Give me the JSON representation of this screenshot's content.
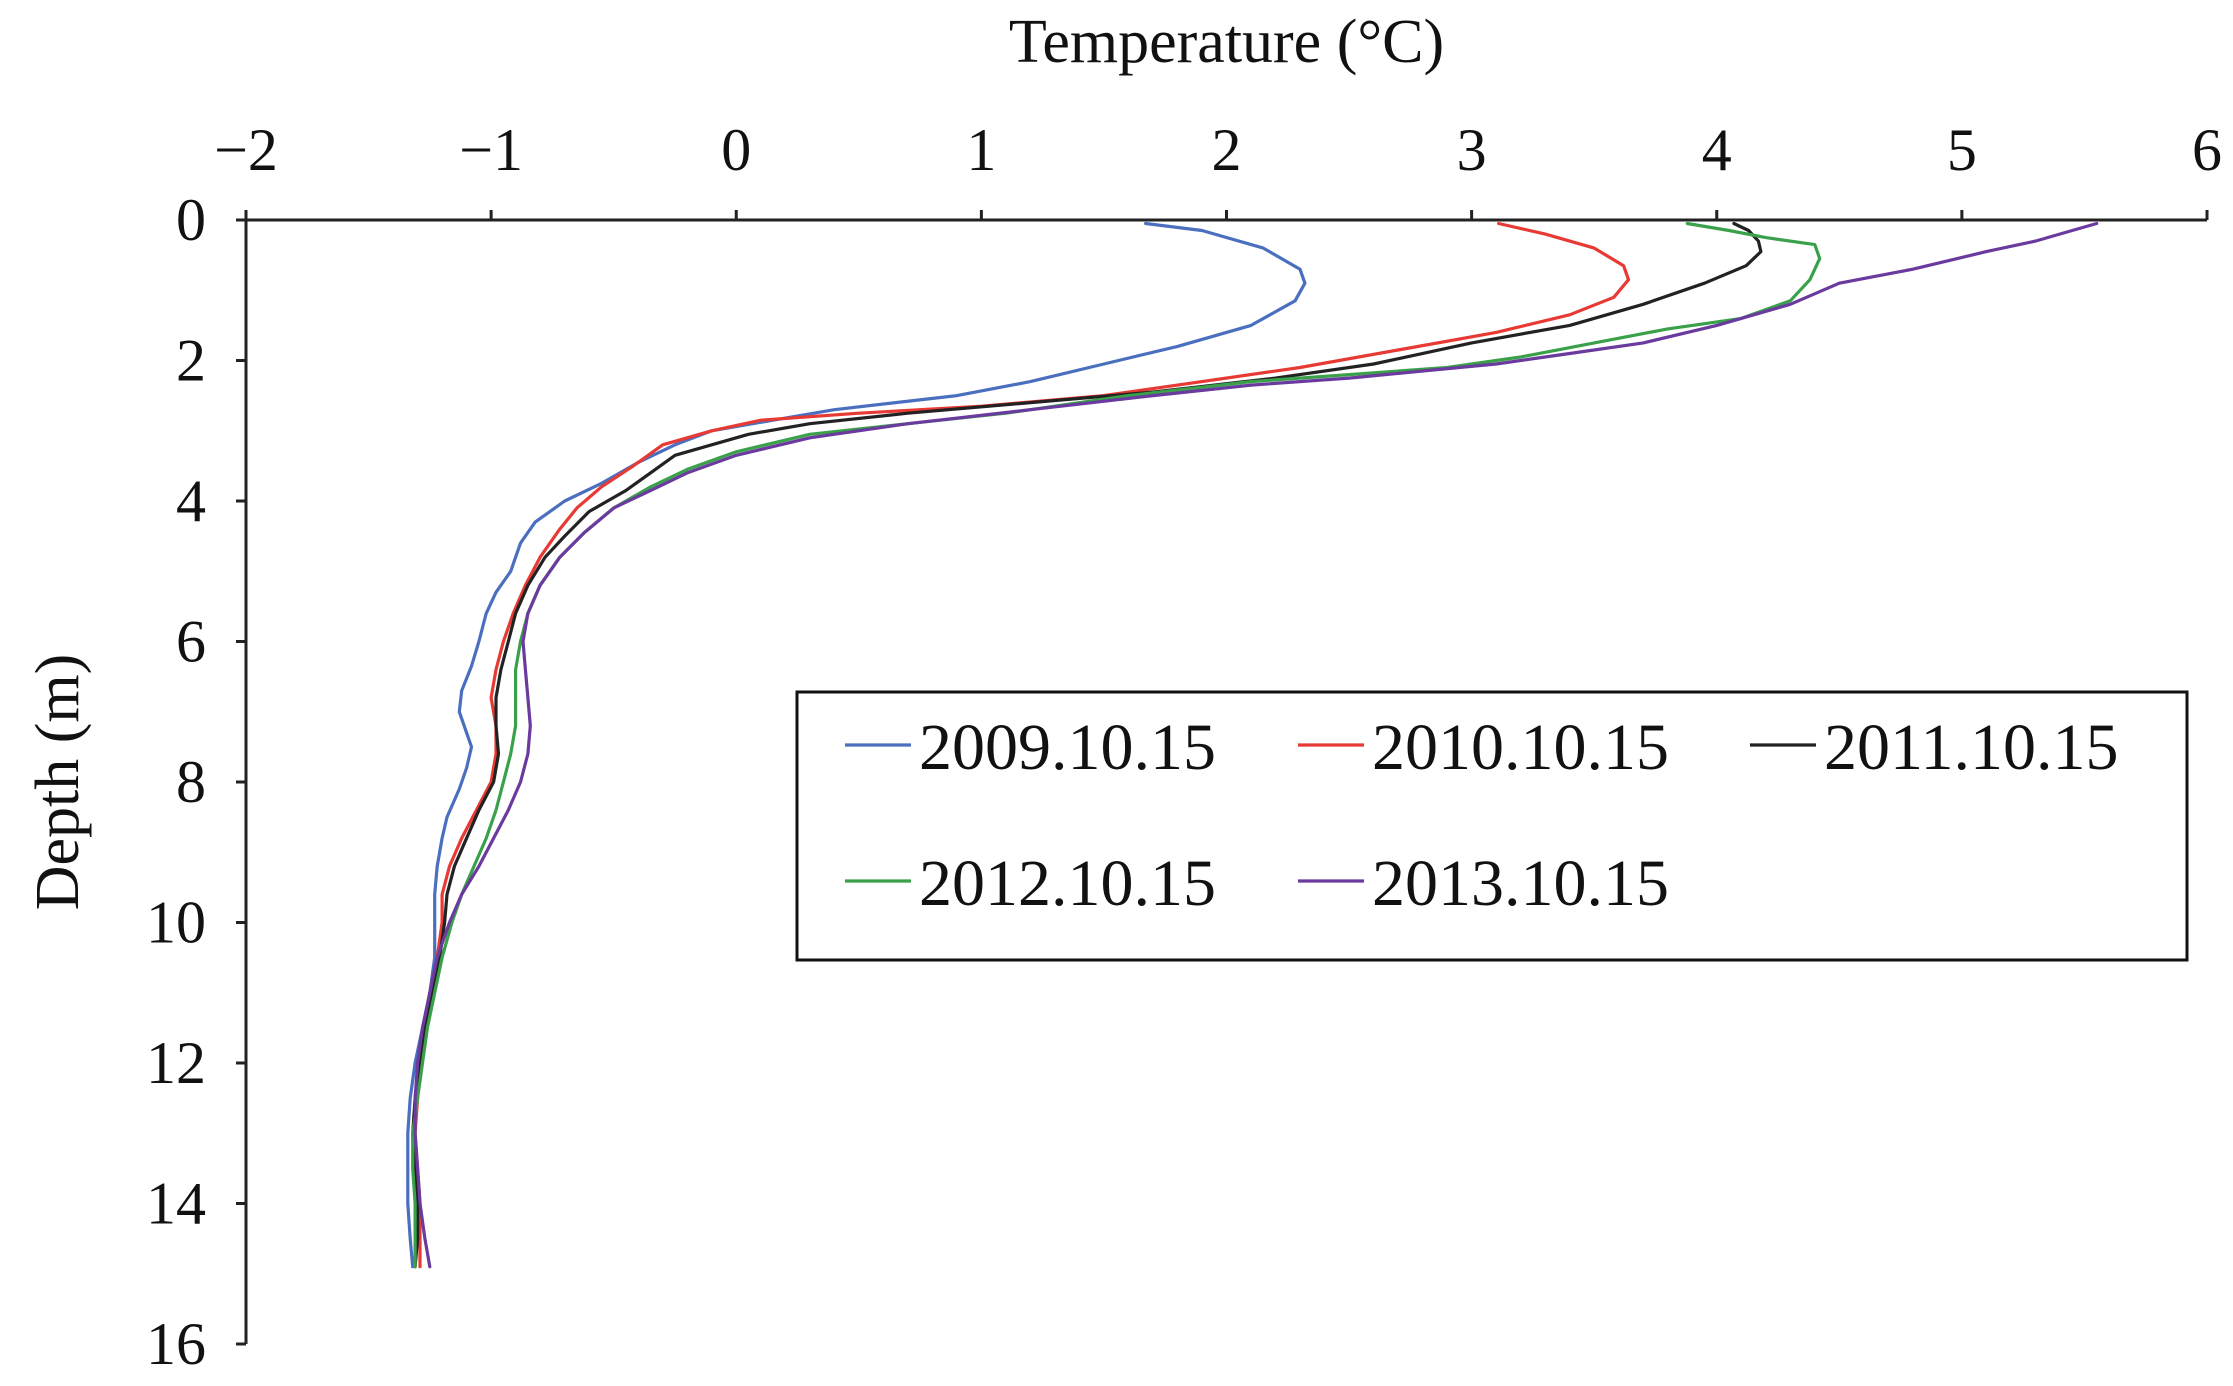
{
  "chart_data": {
    "type": "line",
    "title": "",
    "xlabel": "Temperature (°C)",
    "ylabel": "Depth (m)",
    "x_axis_position": "top",
    "y_axis_inverted": true,
    "xlim": [
      -2,
      6
    ],
    "ylim": [
      0,
      16
    ],
    "x_ticks": [
      "−2",
      "−1",
      "0",
      "1",
      "2",
      "3",
      "4",
      "5",
      "6"
    ],
    "y_ticks": [
      "0",
      "2",
      "4",
      "6",
      "8",
      "10",
      "12",
      "14",
      "16"
    ],
    "grid": false,
    "legend_position": "right-center",
    "series": [
      {
        "name": "2009.10.15",
        "color": "#4a6fbf",
        "points": [
          [
            1.67,
            0.05
          ],
          [
            1.9,
            0.15
          ],
          [
            2.15,
            0.4
          ],
          [
            2.3,
            0.7
          ],
          [
            2.32,
            0.9
          ],
          [
            2.28,
            1.15
          ],
          [
            2.1,
            1.5
          ],
          [
            1.8,
            1.8
          ],
          [
            1.5,
            2.05
          ],
          [
            1.2,
            2.3
          ],
          [
            0.9,
            2.5
          ],
          [
            0.65,
            2.6
          ],
          [
            0.4,
            2.7
          ],
          [
            0.15,
            2.85
          ],
          [
            -0.1,
            3.0
          ],
          [
            -0.25,
            3.2
          ],
          [
            -0.4,
            3.45
          ],
          [
            -0.55,
            3.75
          ],
          [
            -0.7,
            4.0
          ],
          [
            -0.82,
            4.3
          ],
          [
            -0.88,
            4.6
          ],
          [
            -0.92,
            5.0
          ],
          [
            -0.98,
            5.3
          ],
          [
            -1.02,
            5.6
          ],
          [
            -1.05,
            6.0
          ],
          [
            -1.08,
            6.35
          ],
          [
            -1.12,
            6.7
          ],
          [
            -1.13,
            7.0
          ],
          [
            -1.1,
            7.3
          ],
          [
            -1.08,
            7.5
          ],
          [
            -1.1,
            7.8
          ],
          [
            -1.13,
            8.1
          ],
          [
            -1.18,
            8.5
          ],
          [
            -1.2,
            8.8
          ],
          [
            -1.22,
            9.2
          ],
          [
            -1.23,
            9.6
          ],
          [
            -1.23,
            10.0
          ],
          [
            -1.23,
            10.5
          ],
          [
            -1.25,
            11.0
          ],
          [
            -1.28,
            11.5
          ],
          [
            -1.31,
            12.0
          ],
          [
            -1.33,
            12.5
          ],
          [
            -1.34,
            13.0
          ],
          [
            -1.34,
            13.5
          ],
          [
            -1.34,
            14.0
          ],
          [
            -1.33,
            14.5
          ],
          [
            -1.32,
            14.9
          ]
        ]
      },
      {
        "name": "2010.10.15",
        "color": "#e83a34",
        "points": [
          [
            3.11,
            0.05
          ],
          [
            3.3,
            0.2
          ],
          [
            3.5,
            0.4
          ],
          [
            3.62,
            0.65
          ],
          [
            3.64,
            0.85
          ],
          [
            3.58,
            1.1
          ],
          [
            3.4,
            1.35
          ],
          [
            3.1,
            1.6
          ],
          [
            2.7,
            1.85
          ],
          [
            2.3,
            2.1
          ],
          [
            1.9,
            2.3
          ],
          [
            1.5,
            2.5
          ],
          [
            1.0,
            2.65
          ],
          [
            0.5,
            2.75
          ],
          [
            0.1,
            2.85
          ],
          [
            -0.1,
            3.0
          ],
          [
            -0.3,
            3.2
          ],
          [
            -0.42,
            3.5
          ],
          [
            -0.55,
            3.8
          ],
          [
            -0.65,
            4.1
          ],
          [
            -0.72,
            4.4
          ],
          [
            -0.8,
            4.8
          ],
          [
            -0.86,
            5.2
          ],
          [
            -0.91,
            5.6
          ],
          [
            -0.95,
            6.0
          ],
          [
            -0.98,
            6.4
          ],
          [
            -1.0,
            6.8
          ],
          [
            -0.98,
            7.2
          ],
          [
            -0.98,
            7.6
          ],
          [
            -1.0,
            8.0
          ],
          [
            -1.06,
            8.4
          ],
          [
            -1.12,
            8.8
          ],
          [
            -1.17,
            9.2
          ],
          [
            -1.2,
            9.6
          ],
          [
            -1.2,
            10.0
          ],
          [
            -1.22,
            10.5
          ],
          [
            -1.25,
            11.0
          ],
          [
            -1.27,
            11.5
          ],
          [
            -1.29,
            12.0
          ],
          [
            -1.3,
            12.5
          ],
          [
            -1.31,
            13.0
          ],
          [
            -1.3,
            13.5
          ],
          [
            -1.29,
            14.0
          ],
          [
            -1.29,
            14.5
          ],
          [
            -1.29,
            14.9
          ]
        ]
      },
      {
        "name": "2011.10.15",
        "color": "#222222",
        "points": [
          [
            4.07,
            0.05
          ],
          [
            4.13,
            0.15
          ],
          [
            4.17,
            0.3
          ],
          [
            4.18,
            0.45
          ],
          [
            4.12,
            0.65
          ],
          [
            3.95,
            0.9
          ],
          [
            3.7,
            1.2
          ],
          [
            3.4,
            1.5
          ],
          [
            3.0,
            1.75
          ],
          [
            2.6,
            2.05
          ],
          [
            2.2,
            2.25
          ],
          [
            1.7,
            2.45
          ],
          [
            1.2,
            2.6
          ],
          [
            0.7,
            2.75
          ],
          [
            0.3,
            2.9
          ],
          [
            0.05,
            3.05
          ],
          [
            -0.1,
            3.2
          ],
          [
            -0.25,
            3.35
          ],
          [
            -0.35,
            3.6
          ],
          [
            -0.45,
            3.85
          ],
          [
            -0.6,
            4.15
          ],
          [
            -0.7,
            4.5
          ],
          [
            -0.78,
            4.8
          ],
          [
            -0.85,
            5.2
          ],
          [
            -0.9,
            5.6
          ],
          [
            -0.93,
            6.0
          ],
          [
            -0.96,
            6.4
          ],
          [
            -0.98,
            6.8
          ],
          [
            -0.98,
            7.2
          ],
          [
            -0.97,
            7.6
          ],
          [
            -0.99,
            8.0
          ],
          [
            -1.05,
            8.4
          ],
          [
            -1.1,
            8.8
          ],
          [
            -1.15,
            9.2
          ],
          [
            -1.18,
            9.6
          ],
          [
            -1.19,
            10.0
          ],
          [
            -1.21,
            10.5
          ],
          [
            -1.24,
            11.0
          ],
          [
            -1.27,
            11.5
          ],
          [
            -1.29,
            12.0
          ],
          [
            -1.31,
            12.5
          ],
          [
            -1.32,
            13.0
          ],
          [
            -1.31,
            13.5
          ],
          [
            -1.3,
            14.0
          ],
          [
            -1.3,
            14.5
          ],
          [
            -1.31,
            14.9
          ]
        ]
      },
      {
        "name": "2012.10.15",
        "color": "#3aa14a",
        "points": [
          [
            3.88,
            0.05
          ],
          [
            4.05,
            0.15
          ],
          [
            4.2,
            0.25
          ],
          [
            4.4,
            0.35
          ],
          [
            4.42,
            0.55
          ],
          [
            4.38,
            0.85
          ],
          [
            4.3,
            1.15
          ],
          [
            4.1,
            1.4
          ],
          [
            3.8,
            1.55
          ],
          [
            3.5,
            1.75
          ],
          [
            3.2,
            1.95
          ],
          [
            2.9,
            2.1
          ],
          [
            2.5,
            2.2
          ],
          [
            2.1,
            2.3
          ],
          [
            1.6,
            2.5
          ],
          [
            1.1,
            2.75
          ],
          [
            0.7,
            2.9
          ],
          [
            0.3,
            3.05
          ],
          [
            0.0,
            3.3
          ],
          [
            -0.2,
            3.55
          ],
          [
            -0.35,
            3.8
          ],
          [
            -0.5,
            4.1
          ],
          [
            -0.62,
            4.45
          ],
          [
            -0.72,
            4.8
          ],
          [
            -0.8,
            5.2
          ],
          [
            -0.85,
            5.6
          ],
          [
            -0.88,
            6.0
          ],
          [
            -0.9,
            6.4
          ],
          [
            -0.9,
            6.8
          ],
          [
            -0.9,
            7.2
          ],
          [
            -0.92,
            7.6
          ],
          [
            -0.95,
            8.0
          ],
          [
            -0.98,
            8.4
          ],
          [
            -1.02,
            8.8
          ],
          [
            -1.07,
            9.2
          ],
          [
            -1.12,
            9.6
          ],
          [
            -1.16,
            10.0
          ],
          [
            -1.2,
            10.5
          ],
          [
            -1.23,
            11.0
          ],
          [
            -1.26,
            11.5
          ],
          [
            -1.28,
            12.0
          ],
          [
            -1.3,
            12.5
          ],
          [
            -1.32,
            13.0
          ],
          [
            -1.32,
            13.5
          ],
          [
            -1.31,
            14.0
          ],
          [
            -1.31,
            14.5
          ],
          [
            -1.31,
            14.9
          ]
        ]
      },
      {
        "name": "2013.10.15",
        "color": "#6a3a9e",
        "points": [
          [
            5.55,
            0.05
          ],
          [
            5.45,
            0.15
          ],
          [
            5.3,
            0.3
          ],
          [
            5.1,
            0.45
          ],
          [
            4.8,
            0.7
          ],
          [
            4.5,
            0.9
          ],
          [
            4.3,
            1.2
          ],
          [
            4.0,
            1.5
          ],
          [
            3.7,
            1.75
          ],
          [
            3.4,
            1.9
          ],
          [
            3.1,
            2.05
          ],
          [
            2.8,
            2.15
          ],
          [
            2.5,
            2.25
          ],
          [
            2.1,
            2.35
          ],
          [
            1.7,
            2.5
          ],
          [
            1.2,
            2.7
          ],
          [
            0.7,
            2.9
          ],
          [
            0.3,
            3.1
          ],
          [
            0.0,
            3.35
          ],
          [
            -0.2,
            3.6
          ],
          [
            -0.35,
            3.85
          ],
          [
            -0.5,
            4.1
          ],
          [
            -0.62,
            4.45
          ],
          [
            -0.72,
            4.8
          ],
          [
            -0.8,
            5.2
          ],
          [
            -0.85,
            5.6
          ],
          [
            -0.87,
            6.0
          ],
          [
            -0.86,
            6.4
          ],
          [
            -0.85,
            6.8
          ],
          [
            -0.84,
            7.2
          ],
          [
            -0.85,
            7.6
          ],
          [
            -0.88,
            8.0
          ],
          [
            -0.93,
            8.4
          ],
          [
            -0.99,
            8.8
          ],
          [
            -1.05,
            9.2
          ],
          [
            -1.12,
            9.6
          ],
          [
            -1.17,
            10.0
          ],
          [
            -1.22,
            10.5
          ],
          [
            -1.25,
            11.0
          ],
          [
            -1.28,
            11.5
          ],
          [
            -1.3,
            12.0
          ],
          [
            -1.31,
            12.5
          ],
          [
            -1.31,
            13.0
          ],
          [
            -1.3,
            13.5
          ],
          [
            -1.29,
            14.0
          ],
          [
            -1.27,
            14.5
          ],
          [
            -1.25,
            14.9
          ]
        ]
      }
    ]
  }
}
